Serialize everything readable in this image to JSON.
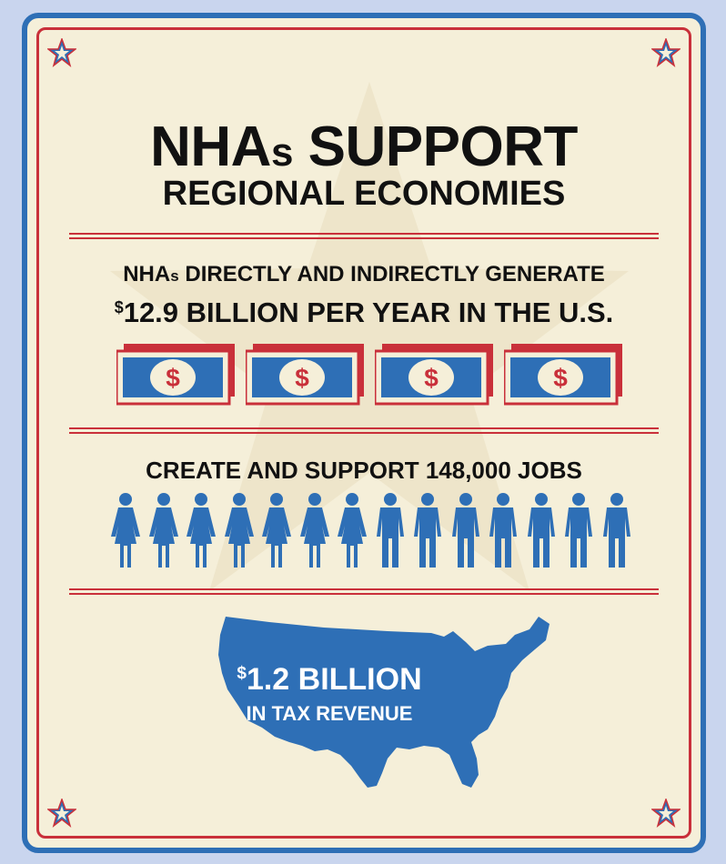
{
  "header": {
    "title_line1_main": "NHA",
    "title_line1_s": "s",
    "title_line1_rest": " SUPPORT",
    "title_line2": "REGIONAL ECONOMIES"
  },
  "economy": {
    "line1_main": "NHA",
    "line1_s": "s",
    "line1_rest": " DIRECTLY AND INDIRECTLY GENERATE",
    "line2_currency": "$",
    "line2_rest": "12.9 BILLION PER YEAR IN THE U.S.",
    "bill_symbol": "$",
    "bill_count": 4
  },
  "jobs": {
    "text": "CREATE AND SUPPORT 148,000 JOBS",
    "female_count": 7,
    "male_count": 7
  },
  "tax": {
    "line1_currency": "$",
    "line1_rest": "1.2 BILLION",
    "line2": "IN TAX REVENUE"
  },
  "colors": {
    "blue": "#2e6fb6",
    "red": "#c9303a",
    "cream": "#f5efd9"
  },
  "icons": {
    "corner": "star-icon",
    "bill": "dollar-bill-icon",
    "person": "person-icon",
    "map": "us-map-icon"
  }
}
